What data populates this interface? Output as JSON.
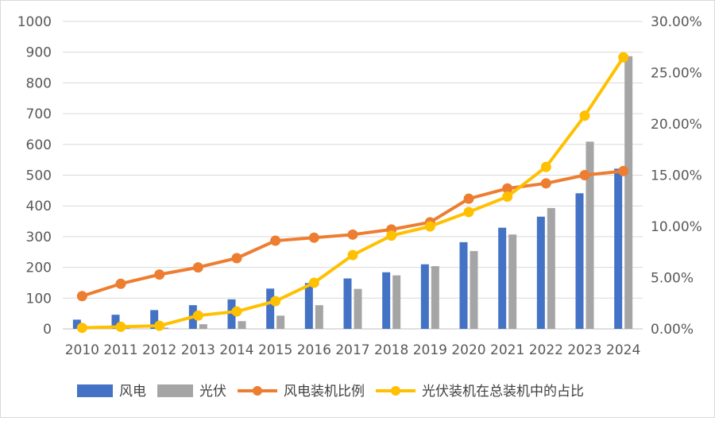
{
  "chart_data": {
    "type": "bar+line",
    "categories": [
      "2010",
      "2011",
      "2012",
      "2013",
      "2014",
      "2015",
      "2016",
      "2017",
      "2018",
      "2019",
      "2020",
      "2021",
      "2022",
      "2023",
      "2024"
    ],
    "left_axis": {
      "ylim": [
        0,
        1000
      ],
      "ticks": [
        "0",
        "100",
        "200",
        "300",
        "400",
        "500",
        "600",
        "700",
        "800",
        "900",
        "1000"
      ]
    },
    "right_axis": {
      "ylim": [
        0,
        0.3
      ],
      "ticks": [
        "0.00%",
        "5.00%",
        "10.00%",
        "15.00%",
        "20.00%",
        "25.00%",
        "30.00%"
      ]
    },
    "grid": true,
    "legend_position": "bottom",
    "series": [
      {
        "name": "风电",
        "type": "bar",
        "axis": "left",
        "color": "#4472C4",
        "values": [
          30,
          46,
          61,
          77,
          96,
          131,
          149,
          164,
          184,
          210,
          282,
          329,
          365,
          441,
          521
        ]
      },
      {
        "name": "光伏",
        "type": "bar",
        "axis": "left",
        "color": "#A5A5A5",
        "values": [
          1,
          3,
          4,
          15,
          25,
          43,
          77,
          130,
          174,
          204,
          253,
          307,
          393,
          609,
          887
        ]
      },
      {
        "name": "风电装机比例",
        "type": "line",
        "axis": "right",
        "color": "#ED7D31",
        "values": [
          0.032,
          0.044,
          0.053,
          0.06,
          0.069,
          0.086,
          0.089,
          0.092,
          0.097,
          0.104,
          0.127,
          0.137,
          0.142,
          0.15,
          0.154
        ]
      },
      {
        "name": "光伏装机在总装机中的占比",
        "type": "line",
        "axis": "right",
        "color": "#FFC000",
        "values": [
          0.001,
          0.002,
          0.003,
          0.013,
          0.017,
          0.027,
          0.045,
          0.072,
          0.091,
          0.1,
          0.114,
          0.129,
          0.158,
          0.208,
          0.265
        ]
      }
    ]
  }
}
